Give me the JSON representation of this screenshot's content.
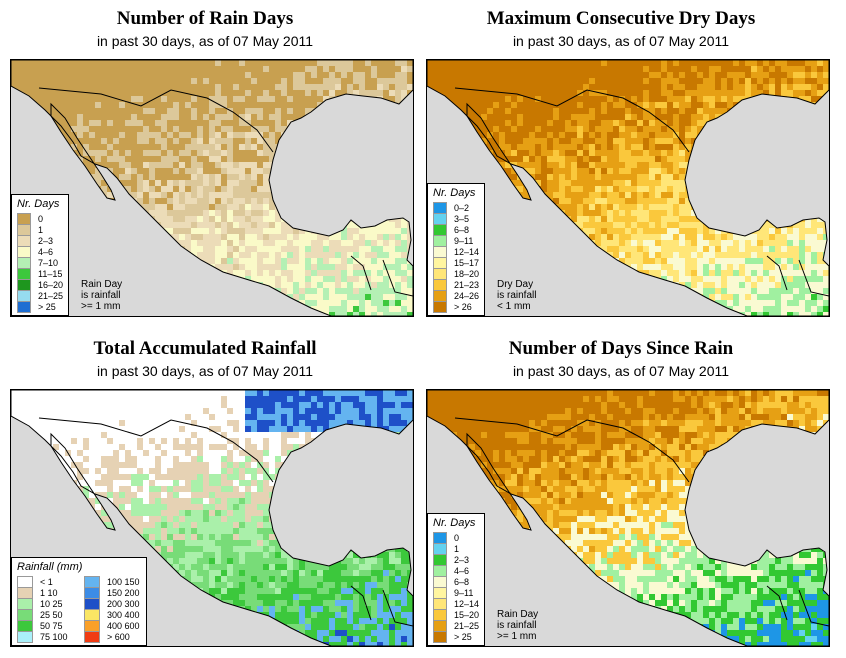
{
  "panels": [
    {
      "title": "Number of Rain Days",
      "subtitle": "in past 30 days, as of  07 May 2011",
      "legend_title": "Nr. Days",
      "legend": [
        {
          "label": "0",
          "color": "#c8a050"
        },
        {
          "label": "1",
          "color": "#dcc89a"
        },
        {
          "label": "2–3",
          "color": "#ecdcb8"
        },
        {
          "label": "4–6",
          "color": "#fafac8"
        },
        {
          "label": "7–10",
          "color": "#b4f0b4"
        },
        {
          "label": "11–15",
          "color": "#3cc83c"
        },
        {
          "label": "16–20",
          "color": "#1e961e"
        },
        {
          "label": "21–25",
          "color": "#96dcf0"
        },
        {
          "label": "> 25",
          "color": "#1e6ed2"
        }
      ],
      "note": [
        "Rain Day",
        "is rainfall",
        ">= 1 mm"
      ]
    },
    {
      "title": "Maximum Consecutive Dry Days",
      "subtitle": "in past 30 days, as of  07 May 2011",
      "legend_title": "Nr. Days",
      "legend": [
        {
          "label": "0–2",
          "color": "#1e96e6"
        },
        {
          "label": "3–5",
          "color": "#64d2f0"
        },
        {
          "label": "6–8",
          "color": "#32c832"
        },
        {
          "label": "9–11",
          "color": "#a0f0a0"
        },
        {
          "label": "12–14",
          "color": "#fafad2"
        },
        {
          "label": "15–17",
          "color": "#fff5a0"
        },
        {
          "label": "18–20",
          "color": "#ffe678"
        },
        {
          "label": "21–23",
          "color": "#fac83c"
        },
        {
          "label": "24–26",
          "color": "#e6a014"
        },
        {
          "label": "> 26",
          "color": "#c87800"
        }
      ],
      "note": [
        "Dry Day",
        "is rainfall",
        "< 1 mm"
      ]
    },
    {
      "title": "Total Accumulated Rainfall",
      "subtitle": "in past 30 days, as of  07 May 2011",
      "legend_title": "Rainfall (mm)",
      "legend_left": [
        {
          "label": "<  1",
          "color": "#ffffff"
        },
        {
          "label": "1    10",
          "color": "#e6d2b4"
        },
        {
          "label": "10    25",
          "color": "#aaf0aa"
        },
        {
          "label": "25    50",
          "color": "#78dc78"
        },
        {
          "label": "50    75",
          "color": "#3cc83c"
        },
        {
          "label": "75  100",
          "color": "#aaf0fa"
        }
      ],
      "legend_right": [
        {
          "label": "100  150",
          "color": "#64b4f0"
        },
        {
          "label": "150  200",
          "color": "#3c8ce6"
        },
        {
          "label": "200  300",
          "color": "#1e50c8"
        },
        {
          "label": "300  400",
          "color": "#fae664"
        },
        {
          "label": "400  600",
          "color": "#faa028"
        },
        {
          "label": "> 600",
          "color": "#f03c14"
        }
      ]
    },
    {
      "title": "Number of Days Since Rain",
      "subtitle": "in past 30 days, as of  07 May 2011",
      "legend_title": "Nr. Days",
      "legend": [
        {
          "label": "0",
          "color": "#1e96e6"
        },
        {
          "label": "1",
          "color": "#64d2f0"
        },
        {
          "label": "2–3",
          "color": "#32c832"
        },
        {
          "label": "4–6",
          "color": "#a0f0a0"
        },
        {
          "label": "6–8",
          "color": "#fafad2"
        },
        {
          "label": "9–11",
          "color": "#fff5a0"
        },
        {
          "label": "12–14",
          "color": "#ffe678"
        },
        {
          "label": "15–20",
          "color": "#fac83c"
        },
        {
          "label": "21–25",
          "color": "#e6a014"
        },
        {
          "label": "> 25",
          "color": "#c87800"
        }
      ],
      "note": [
        "Rain Day",
        "is rainfall",
        ">= 1 mm"
      ]
    }
  ],
  "map_colors": {
    "ocean": "#d9d9d9",
    "p1": [
      "#c8a050",
      "#c8a050",
      "#dcc89a",
      "#ecdcb8",
      "#fafac8",
      "#b4f0b4",
      "#3cc83c"
    ],
    "p2": [
      "#c87800",
      "#c87800",
      "#e6a014",
      "#fac83c",
      "#ffe678",
      "#fafad2",
      "#a0f0a0",
      "#32c832"
    ],
    "p3": [
      "#ffffff",
      "#ffffff",
      "#e6d2b4",
      "#aaf0aa",
      "#78dc78",
      "#3cc83c",
      "#64b4f0",
      "#1e50c8"
    ],
    "p4": [
      "#c87800",
      "#c87800",
      "#e6a014",
      "#fac83c",
      "#fafad2",
      "#a0f0a0",
      "#32c832",
      "#1e96e6",
      "#64d2f0"
    ]
  }
}
